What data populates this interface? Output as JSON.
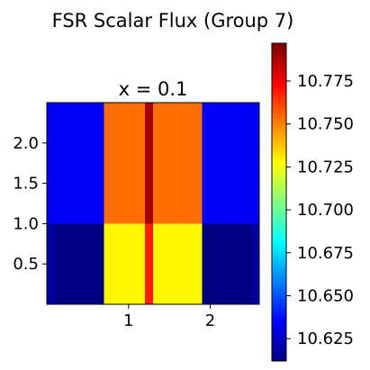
{
  "chart_data": {
    "type": "heatmap",
    "title": "FSR Scalar Flux (Group 7)",
    "subtitle": "x = 0.1",
    "xlabel": "",
    "ylabel": "",
    "xlim": [
      0.0,
      2.6
    ],
    "ylim": [
      0.0,
      2.5
    ],
    "x_ticks": [
      1,
      2
    ],
    "y_ticks": [
      0.5,
      1.0,
      1.5,
      2.0
    ],
    "x_tick_labels": [
      "1",
      "2"
    ],
    "y_tick_labels": [
      "0.5",
      "1.0",
      "1.5",
      "2.0"
    ],
    "colorbar": {
      "colormap": "jet",
      "vmin": 10.612,
      "vmax": 10.797,
      "ticks": [
        10.625,
        10.65,
        10.675,
        10.7,
        10.725,
        10.75,
        10.775
      ],
      "tick_labels": [
        "10.625",
        "10.650",
        "10.675",
        "10.700",
        "10.725",
        "10.750",
        "10.775"
      ]
    },
    "regions": [
      {
        "x": [
          0.0,
          0.1
        ],
        "y": [
          0.0,
          1.0
        ],
        "value": 10.618
      },
      {
        "x": [
          0.1,
          0.7
        ],
        "y": [
          0.0,
          1.0
        ],
        "value": 10.612
      },
      {
        "x": [
          0.7,
          1.2
        ],
        "y": [
          0.0,
          1.0
        ],
        "value": 10.729
      },
      {
        "x": [
          1.2,
          1.3
        ],
        "y": [
          0.0,
          1.0
        ],
        "value": 10.769
      },
      {
        "x": [
          1.3,
          1.9
        ],
        "y": [
          0.0,
          1.0
        ],
        "value": 10.729
      },
      {
        "x": [
          1.9,
          2.5
        ],
        "y": [
          0.0,
          1.0
        ],
        "value": 10.612
      },
      {
        "x": [
          2.5,
          2.6
        ],
        "y": [
          0.0,
          1.0
        ],
        "value": 10.618
      },
      {
        "x": [
          0.0,
          0.7
        ],
        "y": [
          1.0,
          2.5
        ],
        "value": 10.634
      },
      {
        "x": [
          0.7,
          1.2
        ],
        "y": [
          1.0,
          2.5
        ],
        "value": 10.754
      },
      {
        "x": [
          1.2,
          1.3
        ],
        "y": [
          1.0,
          2.5
        ],
        "value": 10.79
      },
      {
        "x": [
          1.3,
          1.9
        ],
        "y": [
          1.0,
          2.5
        ],
        "value": 10.754
      },
      {
        "x": [
          1.9,
          2.6
        ],
        "y": [
          1.0,
          2.5
        ],
        "value": 10.634
      }
    ]
  }
}
